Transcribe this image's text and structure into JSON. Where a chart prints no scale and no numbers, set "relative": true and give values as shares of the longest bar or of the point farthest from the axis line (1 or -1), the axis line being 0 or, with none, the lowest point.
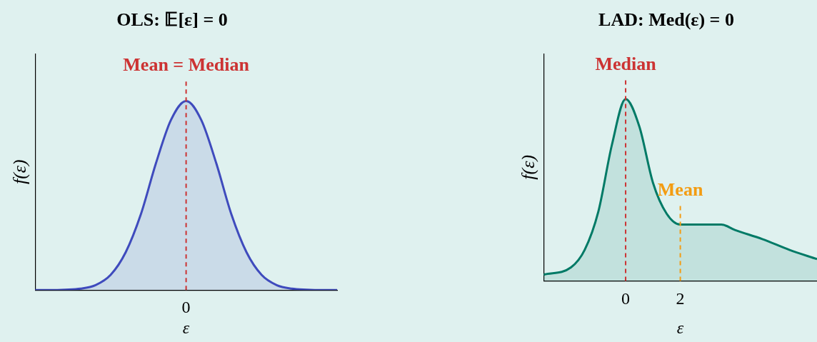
{
  "chart_data": [
    {
      "type": "area",
      "title": "OLS: 𝔼[ε] = 0",
      "xlabel": "ε",
      "ylabel": "f(ε)",
      "relative": true,
      "grid": false,
      "legend": false,
      "categories": [
        null,
        null,
        null,
        null,
        null,
        null,
        null,
        null,
        null,
        null,
        null,
        null,
        null,
        null,
        null,
        null,
        null,
        null,
        null,
        null,
        null
      ],
      "annotations": [
        "0"
      ],
      "series": [
        {
          "color": "#3f4bbd",
          "values": [
            0,
            0,
            0.002,
            0.007,
            0.026,
            0.08,
            0.2,
            0.4,
            0.67,
            0.9,
            1,
            0.9,
            0.67,
            0.4,
            0.2,
            0.08,
            0.026,
            0.007,
            0.002,
            0,
            0
          ]
        }
      ],
      "ref_lines": [
        {
          "axis": "x",
          "value": "0",
          "label": "Mean = Median",
          "color": "#cc3333",
          "line_style": "dashed"
        }
      ]
    },
    {
      "type": "area",
      "title": "LAD: Med(ε) = 0",
      "xlabel": "ε",
      "ylabel": "f(ε)",
      "relative": true,
      "grid": false,
      "legend": false,
      "xlim": [
        -3,
        7
      ],
      "xticks": [
        0,
        2
      ],
      "series": [
        {
          "color": "#007a66",
          "x": [
            -3,
            -2,
            -1.5,
            -1,
            -0.5,
            0,
            0.5,
            1,
            1.5,
            2,
            2.5,
            3,
            3.5,
            4,
            5,
            6,
            7
          ],
          "values": [
            0.034,
            0.074,
            0.17,
            0.38,
            0.75,
            1,
            0.85,
            0.54,
            0.37,
            0.31,
            0.31,
            0.31,
            0.31,
            0.28,
            0.23,
            0.17,
            0.12
          ]
        }
      ],
      "ref_lines": [
        {
          "axis": "x",
          "value": 0,
          "label": "Median",
          "color": "#cc3333",
          "line_style": "dashed"
        },
        {
          "axis": "x",
          "value": 2,
          "label": "Mean",
          "color": "#f39c12",
          "line_style": "dashed"
        }
      ]
    }
  ]
}
